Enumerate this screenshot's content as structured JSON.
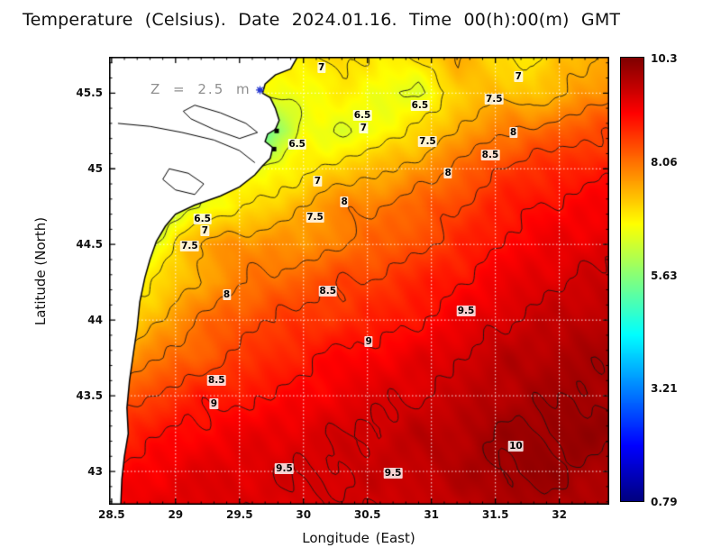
{
  "title": "Temperature (Celsius). Date 2024.01.16. Time 00(h):00(m) GMT",
  "annotation": {
    "text": "Z = 2.5 m"
  },
  "chart_data": {
    "type": "heatmap",
    "title": "Temperature (Celsius). Date 2024.01.16. Time 00(h):00(m) GMT",
    "xlabel": "Longitude (East)",
    "ylabel": "Latitude (North)",
    "units": "Celsius",
    "lon_range": [
      28.48,
      32.39
    ],
    "lat_range": [
      42.78,
      45.74
    ],
    "x_ticks": [
      28.5,
      29,
      29.5,
      30,
      30.5,
      31,
      31.5,
      32
    ],
    "y_ticks": [
      43,
      43.5,
      44,
      44.5,
      45,
      45.5
    ],
    "grid_lines": {
      "style": "dotted",
      "color": "#ffffff"
    },
    "colorbar": {
      "min": 0.79,
      "max": 10.3,
      "colormap": "jet",
      "tick_values": [
        10.3,
        8.06,
        5.63,
        3.21,
        0.79
      ],
      "tick_labels": [
        "10.3",
        "8.06",
        "5.63",
        "3.21",
        "0.79"
      ]
    },
    "x": [
      28.48,
      28.8,
      29.1,
      29.4,
      29.7,
      30.0,
      30.3,
      30.6,
      30.9,
      31.2,
      31.5,
      31.8,
      32.1,
      32.39
    ],
    "y": [
      45.74,
      45.5,
      45.25,
      45.0,
      44.75,
      44.5,
      44.25,
      44.0,
      43.75,
      43.5,
      43.25,
      43.0,
      42.78
    ],
    "values": [
      [
        6.6,
        6.6,
        6.6,
        6.7,
        6.8,
        6.9,
        7.2,
        6.8,
        7.1,
        7.5,
        7.1,
        6.9,
        7.4,
        7.6
      ],
      [
        6.5,
        6.5,
        6.6,
        6.6,
        6.7,
        6.6,
        6.9,
        6.6,
        6.4,
        7.2,
        7.4,
        7.2,
        7.6,
        7.8
      ],
      [
        6.6,
        6.6,
        6.7,
        6.6,
        5.2,
        6.7,
        6.4,
        6.7,
        7.1,
        7.5,
        7.9,
        8.1,
        8.3,
        8.5
      ],
      [
        6.3,
        6.4,
        6.6,
        6.7,
        6.6,
        6.9,
        7.2,
        7.4,
        7.7,
        8.1,
        8.5,
        8.7,
        8.8,
        8.9
      ],
      [
        5.3,
        5.9,
        6.4,
        6.8,
        7.1,
        7.5,
        7.9,
        8.0,
        8.2,
        8.5,
        8.8,
        9.0,
        9.1,
        9.2
      ],
      [
        5.8,
        6.4,
        7.4,
        7.8,
        7.8,
        7.7,
        8.0,
        8.2,
        8.4,
        8.7,
        9.0,
        9.2,
        9.3,
        9.4
      ],
      [
        6.4,
        6.9,
        7.4,
        7.8,
        8.1,
        8.3,
        8.5,
        8.6,
        8.8,
        9.0,
        9.2,
        9.4,
        9.5,
        9.6
      ],
      [
        6.9,
        7.4,
        7.9,
        8.3,
        8.5,
        8.6,
        8.7,
        8.8,
        9.0,
        9.2,
        9.45,
        9.6,
        9.7,
        9.8
      ],
      [
        7.4,
        7.9,
        8.2,
        8.45,
        8.7,
        8.9,
        9.1,
        9.2,
        9.3,
        9.5,
        9.7,
        9.8,
        9.9,
        9.9
      ],
      [
        8.2,
        8.5,
        8.8,
        8.9,
        9.0,
        9.1,
        9.3,
        9.4,
        9.5,
        9.6,
        9.8,
        9.9,
        10.0,
        10.0
      ],
      [
        8.7,
        8.9,
        9.1,
        9.2,
        9.3,
        9.4,
        9.5,
        9.6,
        9.7,
        9.8,
        10.0,
        10.05,
        10.1,
        10.05
      ],
      [
        9.0,
        9.2,
        9.35,
        9.4,
        9.45,
        9.5,
        9.55,
        9.6,
        9.7,
        9.8,
        10.0,
        10.1,
        10.0,
        9.9
      ],
      [
        9.2,
        9.3,
        9.4,
        9.45,
        9.4,
        9.45,
        9.5,
        9.55,
        9.6,
        9.7,
        9.85,
        9.9,
        9.85,
        9.8
      ]
    ],
    "contour_levels": [
      6.5,
      7,
      7.5,
      8,
      8.5,
      9,
      9.5,
      10
    ],
    "contour_labels": [
      {
        "text": "7",
        "lon": 30.14,
        "lat": 45.67
      },
      {
        "text": "7",
        "lon": 31.68,
        "lat": 45.61
      },
      {
        "text": "7.5",
        "lon": 31.49,
        "lat": 45.46
      },
      {
        "text": "6.5",
        "lon": 30.91,
        "lat": 45.42
      },
      {
        "text": "6.5",
        "lon": 30.46,
        "lat": 45.35
      },
      {
        "text": "7",
        "lon": 30.47,
        "lat": 45.27
      },
      {
        "text": "8",
        "lon": 31.64,
        "lat": 45.24
      },
      {
        "text": "7.5",
        "lon": 30.97,
        "lat": 45.18
      },
      {
        "text": "6.5",
        "lon": 29.95,
        "lat": 45.16
      },
      {
        "text": "8.5",
        "lon": 31.46,
        "lat": 45.09
      },
      {
        "text": "8",
        "lon": 31.13,
        "lat": 44.97
      },
      {
        "text": "7",
        "lon": 30.11,
        "lat": 44.92
      },
      {
        "text": "8",
        "lon": 30.32,
        "lat": 44.78
      },
      {
        "text": "7.5",
        "lon": 30.09,
        "lat": 44.68
      },
      {
        "text": "6.5",
        "lon": 29.21,
        "lat": 44.67
      },
      {
        "text": "7",
        "lon": 29.23,
        "lat": 44.59
      },
      {
        "text": "7.5",
        "lon": 29.11,
        "lat": 44.49
      },
      {
        "text": "8.5",
        "lon": 30.19,
        "lat": 44.19
      },
      {
        "text": "8",
        "lon": 29.4,
        "lat": 44.17
      },
      {
        "text": "9.5",
        "lon": 31.27,
        "lat": 44.06
      },
      {
        "text": "9",
        "lon": 30.51,
        "lat": 43.86
      },
      {
        "text": "8.5",
        "lon": 29.32,
        "lat": 43.6
      },
      {
        "text": "9",
        "lon": 29.3,
        "lat": 43.45
      },
      {
        "text": "10",
        "lon": 31.66,
        "lat": 43.17
      },
      {
        "text": "9.5",
        "lon": 29.85,
        "lat": 43.02
      },
      {
        "text": "9.5",
        "lon": 30.7,
        "lat": 42.99
      }
    ],
    "land": {
      "coast": [
        [
          29.98,
          45.78
        ],
        [
          29.9,
          45.66
        ],
        [
          29.78,
          45.62
        ],
        [
          29.7,
          45.56
        ],
        [
          29.68,
          45.5
        ],
        [
          29.74,
          45.47
        ],
        [
          29.78,
          45.4
        ],
        [
          29.81,
          45.32
        ],
        [
          29.78,
          45.26
        ],
        [
          29.72,
          45.23
        ],
        [
          29.7,
          45.18
        ],
        [
          29.76,
          45.14
        ],
        [
          29.74,
          45.07
        ],
        [
          29.68,
          45.02
        ],
        [
          29.62,
          44.96
        ],
        [
          29.5,
          44.88
        ],
        [
          29.35,
          44.82
        ],
        [
          29.15,
          44.76
        ],
        [
          29.0,
          44.7
        ],
        [
          28.92,
          44.62
        ],
        [
          28.85,
          44.52
        ],
        [
          28.8,
          44.4
        ],
        [
          28.76,
          44.28
        ],
        [
          28.72,
          44.12
        ],
        [
          28.7,
          43.95
        ],
        [
          28.67,
          43.78
        ],
        [
          28.64,
          43.6
        ],
        [
          28.62,
          43.42
        ],
        [
          28.63,
          43.25
        ],
        [
          28.6,
          43.1
        ],
        [
          28.58,
          42.95
        ],
        [
          28.57,
          42.74
        ]
      ],
      "lagoons": [
        [
          [
            28.95,
            45.0
          ],
          [
            29.1,
            44.97
          ],
          [
            29.22,
            44.9
          ],
          [
            29.15,
            44.83
          ],
          [
            29.0,
            44.86
          ],
          [
            28.9,
            44.93
          ]
        ],
        [
          [
            29.15,
            45.42
          ],
          [
            29.35,
            45.37
          ],
          [
            29.55,
            45.3
          ],
          [
            29.64,
            45.24
          ],
          [
            29.5,
            45.2
          ],
          [
            29.3,
            45.26
          ],
          [
            29.12,
            45.33
          ],
          [
            29.06,
            45.38
          ]
        ]
      ],
      "river": [
        [
          28.55,
          45.3
        ],
        [
          28.8,
          45.28
        ],
        [
          29.05,
          45.24
        ],
        [
          29.3,
          45.19
        ],
        [
          29.5,
          45.12
        ],
        [
          29.62,
          45.04
        ]
      ],
      "coast_marks": [
        [
          29.79,
          45.25
        ],
        [
          29.77,
          45.13
        ]
      ],
      "marker": {
        "lon": 29.66,
        "lat": 45.52,
        "color": "#2a3bd0"
      }
    }
  }
}
